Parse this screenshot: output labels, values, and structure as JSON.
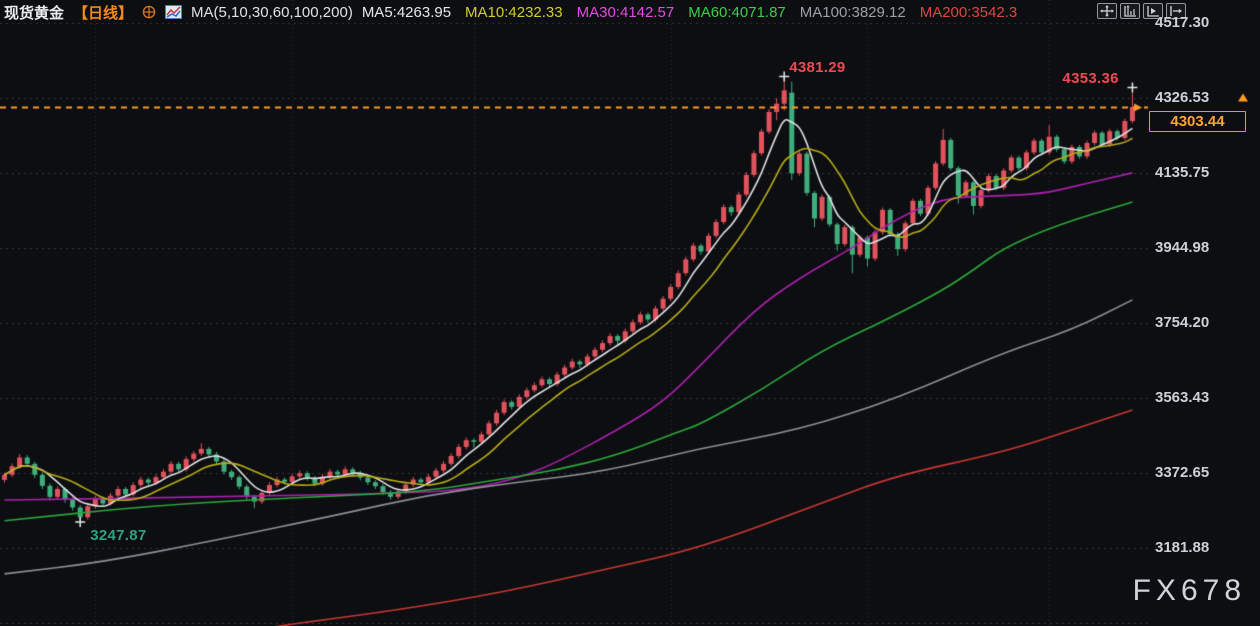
{
  "header": {
    "symbol": "现货黄金",
    "period": "【日线】",
    "ma_label": "MA(5,10,30,60,100,200)",
    "ma_items": [
      {
        "label": "MA5:4263.95",
        "color": "#e4e6ea"
      },
      {
        "label": "MA10:4232.33",
        "color": "#d4cc2a"
      },
      {
        "label": "MA30:4142.57",
        "color": "#e14ce1"
      },
      {
        "label": "MA60:4071.87",
        "color": "#3bcf49"
      },
      {
        "label": "MA100:3829.12",
        "color": "#9aa0a8"
      },
      {
        "label": "MA200:3542.3",
        "color": "#dc4840"
      }
    ]
  },
  "toolbar": {
    "buttons": [
      "move-tool",
      "auto-scale-axis-tool",
      "scroll-to-latest-tool",
      "shift-right-tool"
    ]
  },
  "axis": {
    "labels": [
      "4517.30",
      "4326.53",
      "4135.75",
      "3944.98",
      "3754.20",
      "3563.43",
      "3372.65",
      "3181.88"
    ],
    "prices": [
      4517.3,
      4326.53,
      4135.75,
      3944.98,
      3754.2,
      3563.43,
      3372.65,
      3181.88
    ]
  },
  "price_marker": {
    "value": "4303.44",
    "price": 4303.44,
    "color": "#ff9a27"
  },
  "annotations": [
    {
      "text": "4381.29",
      "price": 4381.29,
      "index": 103,
      "color": "#ef4a52",
      "placement": "above"
    },
    {
      "text": "4353.36",
      "price": 4353.36,
      "index": 149,
      "color": "#ef4a52",
      "placement": "above-left"
    },
    {
      "text": "3247.87",
      "price": 3247.87,
      "index": 10,
      "color": "#2ea17d",
      "placement": "below"
    }
  ],
  "watermark": "FX678",
  "chart_data": {
    "type": "candlestick",
    "title": "现货黄金 日线",
    "up_color": "#e0535d",
    "down_color": "#3fae7c",
    "y_axis": {
      "gridline_prices": [
        4517.3,
        4326.53,
        4135.75,
        3944.98,
        3754.2,
        3563.43,
        3372.65,
        3181.88,
        2991.1
      ]
    },
    "x_gridline_indices": [
      12,
      38,
      62,
      88,
      114,
      138
    ],
    "swing_markers": [
      {
        "index": 10,
        "price": 3247.87
      },
      {
        "index": 103,
        "price": 4381.29
      },
      {
        "index": 149,
        "price": 4353.36
      }
    ],
    "computed_mas": [
      {
        "period": 5,
        "color": "#dfe1e4"
      },
      {
        "period": 10,
        "color": "#b6ac15"
      }
    ],
    "ma_lines": [
      {
        "name": "MA30",
        "color": "#ab1fae",
        "points": [
          [
            0,
            3304
          ],
          [
            26,
            3311
          ],
          [
            55,
            3322
          ],
          [
            62,
            3334
          ],
          [
            68,
            3360
          ],
          [
            73,
            3400
          ],
          [
            81,
            3482
          ],
          [
            87,
            3553
          ],
          [
            92,
            3647
          ],
          [
            99,
            3787
          ],
          [
            105,
            3869
          ],
          [
            112,
            3945
          ],
          [
            118,
            4021
          ],
          [
            124,
            4072
          ],
          [
            130,
            4077
          ],
          [
            137,
            4082
          ],
          [
            142,
            4105
          ],
          [
            149,
            4136
          ]
        ]
      },
      {
        "name": "MA60",
        "color": "#2aa83b",
        "points": [
          [
            0,
            3251
          ],
          [
            19,
            3289
          ],
          [
            39,
            3311
          ],
          [
            55,
            3324
          ],
          [
            65,
            3355
          ],
          [
            73,
            3380
          ],
          [
            81,
            3418
          ],
          [
            89,
            3477
          ],
          [
            92,
            3497
          ],
          [
            100,
            3584
          ],
          [
            108,
            3685
          ],
          [
            117,
            3767
          ],
          [
            124,
            3838
          ],
          [
            128,
            3889
          ],
          [
            132,
            3945
          ],
          [
            139,
            4003
          ],
          [
            149,
            4062
          ]
        ]
      },
      {
        "name": "MA100",
        "color": "#8d9096",
        "points": [
          [
            0,
            3116
          ],
          [
            13,
            3146
          ],
          [
            28,
            3202
          ],
          [
            44,
            3266
          ],
          [
            56,
            3317
          ],
          [
            68,
            3350
          ],
          [
            79,
            3375
          ],
          [
            92,
            3436
          ],
          [
            105,
            3482
          ],
          [
            118,
            3563
          ],
          [
            132,
            3680
          ],
          [
            141,
            3736
          ],
          [
            149,
            3813
          ]
        ]
      },
      {
        "name": "MA200",
        "color": "#c93732",
        "points": [
          [
            0,
            2920
          ],
          [
            26,
            2953
          ],
          [
            37,
            2986
          ],
          [
            52,
            3024
          ],
          [
            66,
            3070
          ],
          [
            79,
            3126
          ],
          [
            92,
            3182
          ],
          [
            109,
            3304
          ],
          [
            118,
            3367
          ],
          [
            132,
            3426
          ],
          [
            141,
            3482
          ],
          [
            149,
            3533
          ]
        ]
      }
    ],
    "candles": [
      [
        3355,
        3374,
        3348,
        3368
      ],
      [
        3368,
        3397,
        3362,
        3390
      ],
      [
        3390,
        3421,
        3384,
        3412
      ],
      [
        3412,
        3418,
        3388,
        3396
      ],
      [
        3396,
        3401,
        3360,
        3368
      ],
      [
        3368,
        3374,
        3332,
        3340
      ],
      [
        3340,
        3346,
        3303,
        3312
      ],
      [
        3312,
        3338,
        3306,
        3332
      ],
      [
        3332,
        3336,
        3297,
        3305
      ],
      [
        3305,
        3311,
        3277,
        3285
      ],
      [
        3285,
        3291,
        3247.87,
        3260
      ],
      [
        3260,
        3294,
        3254,
        3288
      ],
      [
        3288,
        3315,
        3282,
        3308
      ],
      [
        3308,
        3313,
        3288,
        3295
      ],
      [
        3295,
        3322,
        3290,
        3315
      ],
      [
        3315,
        3339,
        3309,
        3332
      ],
      [
        3332,
        3337,
        3311,
        3318
      ],
      [
        3318,
        3349,
        3313,
        3342
      ],
      [
        3342,
        3363,
        3336,
        3356
      ],
      [
        3356,
        3361,
        3341,
        3348
      ],
      [
        3348,
        3369,
        3342,
        3362
      ],
      [
        3362,
        3383,
        3356,
        3376
      ],
      [
        3376,
        3403,
        3370,
        3396
      ],
      [
        3396,
        3401,
        3375,
        3382
      ],
      [
        3382,
        3415,
        3376,
        3408
      ],
      [
        3408,
        3429,
        3402,
        3422
      ],
      [
        3422,
        3448,
        3416,
        3434
      ],
      [
        3434,
        3439,
        3413,
        3420
      ],
      [
        3420,
        3426,
        3395,
        3402
      ],
      [
        3402,
        3408,
        3369,
        3376
      ],
      [
        3376,
        3381,
        3355,
        3362
      ],
      [
        3362,
        3367,
        3331,
        3338
      ],
      [
        3338,
        3343,
        3305,
        3312
      ],
      [
        3312,
        3317,
        3283,
        3300
      ],
      [
        3300,
        3329,
        3294,
        3322
      ],
      [
        3322,
        3349,
        3316,
        3342
      ],
      [
        3342,
        3363,
        3336,
        3356
      ],
      [
        3356,
        3361,
        3343,
        3350
      ],
      [
        3350,
        3371,
        3344,
        3364
      ],
      [
        3364,
        3379,
        3358,
        3372
      ],
      [
        3372,
        3377,
        3353,
        3360
      ],
      [
        3360,
        3365,
        3339,
        3346
      ],
      [
        3346,
        3370,
        3340,
        3363
      ],
      [
        3363,
        3383,
        3357,
        3376
      ],
      [
        3376,
        3381,
        3362,
        3369
      ],
      [
        3369,
        3389,
        3363,
        3382
      ],
      [
        3382,
        3387,
        3366,
        3373
      ],
      [
        3373,
        3378,
        3354,
        3361
      ],
      [
        3361,
        3366,
        3342,
        3349
      ],
      [
        3349,
        3354,
        3332,
        3339
      ],
      [
        3339,
        3344,
        3317,
        3324
      ],
      [
        3324,
        3329,
        3305,
        3312
      ],
      [
        3312,
        3333,
        3306,
        3326
      ],
      [
        3326,
        3350,
        3320,
        3343
      ],
      [
        3343,
        3363,
        3337,
        3356
      ],
      [
        3356,
        3361,
        3342,
        3349
      ],
      [
        3349,
        3370,
        3343,
        3363
      ],
      [
        3363,
        3386,
        3357,
        3379
      ],
      [
        3379,
        3403,
        3373,
        3396
      ],
      [
        3396,
        3423,
        3390,
        3416
      ],
      [
        3416,
        3446,
        3410,
        3439
      ],
      [
        3439,
        3463,
        3433,
        3456
      ],
      [
        3456,
        3461,
        3437,
        3452
      ],
      [
        3452,
        3478,
        3446,
        3471
      ],
      [
        3471,
        3506,
        3465,
        3499
      ],
      [
        3499,
        3533,
        3493,
        3526
      ],
      [
        3526,
        3560,
        3520,
        3553
      ],
      [
        3553,
        3558,
        3534,
        3541
      ],
      [
        3541,
        3573,
        3535,
        3566
      ],
      [
        3566,
        3590,
        3560,
        3583
      ],
      [
        3583,
        3603,
        3577,
        3596
      ],
      [
        3596,
        3618,
        3590,
        3611
      ],
      [
        3611,
        3616,
        3592,
        3599
      ],
      [
        3599,
        3630,
        3593,
        3623
      ],
      [
        3623,
        3648,
        3617,
        3641
      ],
      [
        3641,
        3663,
        3635,
        3656
      ],
      [
        3656,
        3661,
        3640,
        3649
      ],
      [
        3649,
        3676,
        3643,
        3669
      ],
      [
        3669,
        3693,
        3663,
        3686
      ],
      [
        3686,
        3710,
        3680,
        3703
      ],
      [
        3703,
        3728,
        3697,
        3721
      ],
      [
        3721,
        3726,
        3700,
        3709
      ],
      [
        3709,
        3740,
        3703,
        3733
      ],
      [
        3733,
        3763,
        3727,
        3756
      ],
      [
        3756,
        3783,
        3750,
        3776
      ],
      [
        3776,
        3781,
        3755,
        3763
      ],
      [
        3763,
        3798,
        3757,
        3791
      ],
      [
        3791,
        3823,
        3785,
        3816
      ],
      [
        3816,
        3853,
        3810,
        3846
      ],
      [
        3846,
        3888,
        3840,
        3881
      ],
      [
        3881,
        3923,
        3875,
        3916
      ],
      [
        3916,
        3958,
        3910,
        3951
      ],
      [
        3951,
        3956,
        3928,
        3936
      ],
      [
        3936,
        3983,
        3930,
        3976
      ],
      [
        3976,
        4018,
        3970,
        4011
      ],
      [
        4011,
        4056,
        4005,
        4049
      ],
      [
        4049,
        4054,
        4027,
        4036
      ],
      [
        4036,
        4088,
        4030,
        4081
      ],
      [
        4081,
        4138,
        4075,
        4131
      ],
      [
        4131,
        4193,
        4125,
        4186
      ],
      [
        4186,
        4248,
        4180,
        4241
      ],
      [
        4241,
        4298,
        4235,
        4291
      ],
      [
        4291,
        4326,
        4270,
        4312
      ],
      [
        4312,
        4381.29,
        4295,
        4346
      ],
      [
        4340,
        4368,
        4118,
        4135
      ],
      [
        4135,
        4192,
        4129,
        4185
      ],
      [
        4185,
        4190,
        4078,
        4085
      ],
      [
        4085,
        4090,
        3998,
        4020
      ],
      [
        4020,
        4081,
        4014,
        4075
      ],
      [
        4075,
        4080,
        3999,
        4005
      ],
      [
        4005,
        4010,
        3938,
        3955
      ],
      [
        3955,
        4004,
        3949,
        3998
      ],
      [
        3998,
        4003,
        3881,
        3928
      ],
      [
        3928,
        3978,
        3922,
        3972
      ],
      [
        3972,
        3977,
        3898,
        3918
      ],
      [
        3918,
        3991,
        3912,
        3985
      ],
      [
        3985,
        4048,
        3979,
        4042
      ],
      [
        4042,
        4047,
        3974,
        3980
      ],
      [
        3980,
        3985,
        3925,
        3942
      ],
      [
        3942,
        4014,
        3936,
        4008
      ],
      [
        4008,
        4071,
        4002,
        4065
      ],
      [
        4065,
        4070,
        4026,
        4032
      ],
      [
        4032,
        4104,
        4026,
        4098
      ],
      [
        4098,
        4166,
        4092,
        4160
      ],
      [
        4160,
        4248,
        4154,
        4220
      ],
      [
        4220,
        4225,
        4142,
        4148
      ],
      [
        4148,
        4153,
        4058,
        4078
      ],
      [
        4078,
        4118,
        4072,
        4112
      ],
      [
        4112,
        4117,
        4030,
        4052
      ],
      [
        4052,
        4098,
        4046,
        4092
      ],
      [
        4092,
        4134,
        4086,
        4128
      ],
      [
        4128,
        4133,
        4092,
        4098
      ],
      [
        4098,
        4148,
        4092,
        4142
      ],
      [
        4142,
        4181,
        4136,
        4175
      ],
      [
        4175,
        4180,
        4142,
        4148
      ],
      [
        4148,
        4194,
        4142,
        4188
      ],
      [
        4188,
        4224,
        4182,
        4218
      ],
      [
        4218,
        4223,
        4182,
        4188
      ],
      [
        4188,
        4258,
        4182,
        4228
      ],
      [
        4228,
        4233,
        4190,
        4196
      ],
      [
        4196,
        4201,
        4159,
        4165
      ],
      [
        4165,
        4208,
        4159,
        4202
      ],
      [
        4202,
        4207,
        4172,
        4178
      ],
      [
        4178,
        4218,
        4172,
        4212
      ],
      [
        4212,
        4244,
        4206,
        4238
      ],
      [
        4238,
        4243,
        4202,
        4208
      ],
      [
        4208,
        4248,
        4202,
        4242
      ],
      [
        4242,
        4247,
        4219,
        4225
      ],
      [
        4225,
        4274,
        4219,
        4268
      ],
      [
        4268,
        4353.36,
        4262,
        4303.44
      ]
    ]
  }
}
